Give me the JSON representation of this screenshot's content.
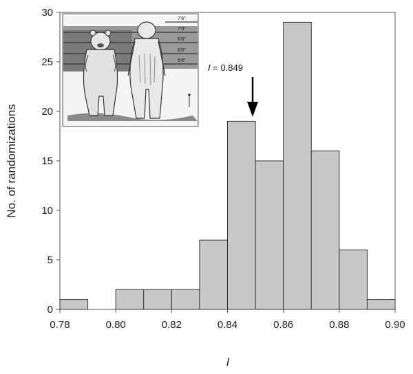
{
  "chart_data": {
    "type": "bar",
    "subtype": "histogram",
    "bin_edges": [
      0.78,
      0.79,
      0.8,
      0.81,
      0.82,
      0.83,
      0.84,
      0.85,
      0.86,
      0.87,
      0.88,
      0.89,
      0.9
    ],
    "values": [
      1,
      0,
      2,
      2,
      2,
      7,
      19,
      15,
      29,
      16,
      6,
      1
    ],
    "xlim": [
      0.78,
      0.9
    ],
    "ylim": [
      0,
      30
    ],
    "xticks": [
      "0.78",
      "0.80",
      "0.82",
      "0.84",
      "0.86",
      "0.88",
      "0.90"
    ],
    "yticks": [
      "0",
      "5",
      "10",
      "15",
      "20",
      "25",
      "30"
    ],
    "xlabel": "I",
    "ylabel": "No. of randomizations",
    "grid": false,
    "bar_color": "#c8c8c8",
    "annotation": {
      "text_var": "I",
      "text_rest": " = 0.849",
      "x": 0.849,
      "arrow": true
    },
    "inset": {
      "height_labels": [
        "7'6\"",
        "7'0\"",
        "6'6\"",
        "6'0\"",
        "5'6\""
      ]
    }
  }
}
